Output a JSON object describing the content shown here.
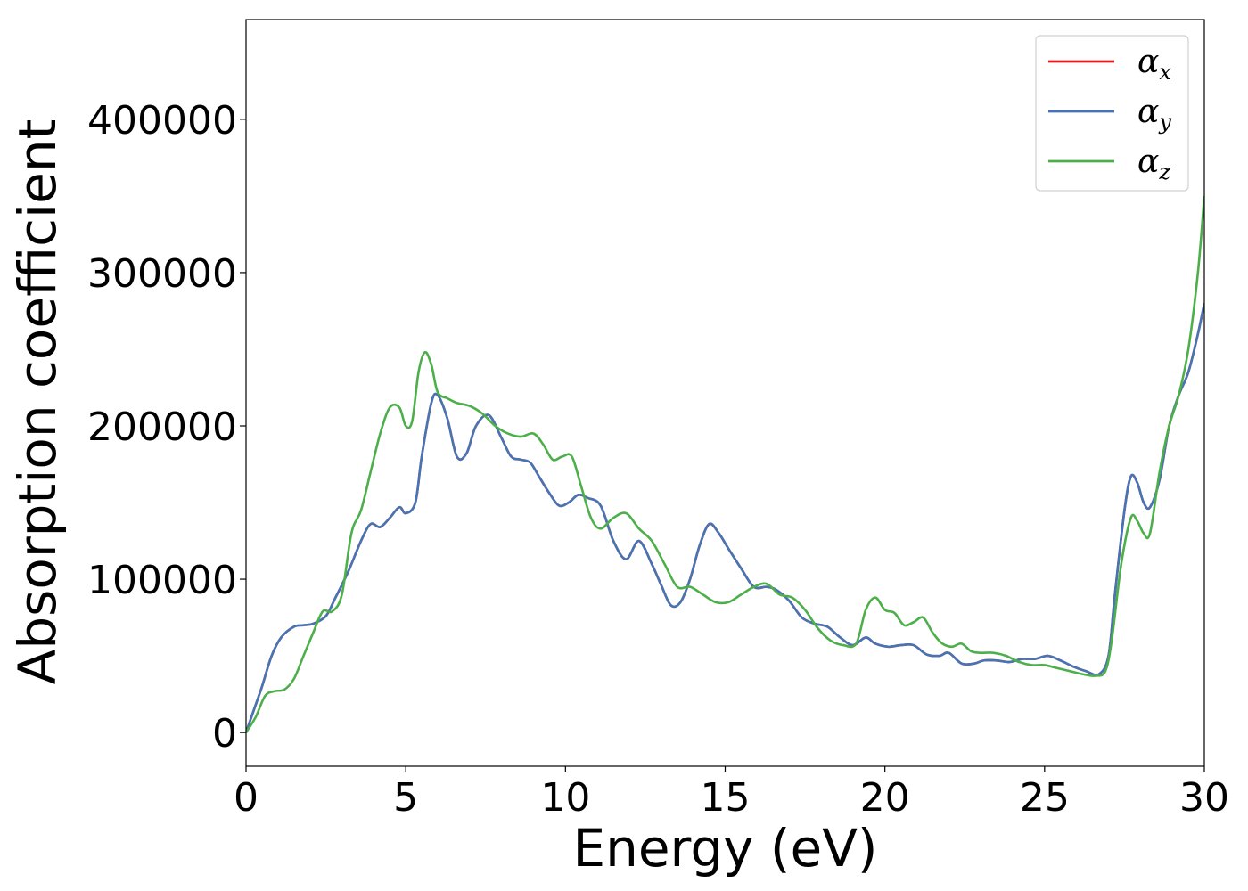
{
  "chart_data": {
    "type": "line",
    "title": "",
    "xlabel": "Energy (eV)",
    "ylabel": "Absorption coefficient",
    "xlim": [
      0,
      30
    ],
    "ylim": [
      -22000,
      465000
    ],
    "xticks": [
      0,
      5,
      10,
      15,
      20,
      25,
      30
    ],
    "yticks": [
      0,
      100000,
      200000,
      300000,
      400000
    ],
    "xtick_labels": [
      "0",
      "5",
      "10",
      "15",
      "20",
      "25",
      "30"
    ],
    "ytick_labels": [
      "0",
      "100000",
      "200000",
      "300000",
      "400000"
    ],
    "grid": false,
    "legend": "top-right",
    "series": [
      {
        "name": "α",
        "subscript": "x",
        "color": "#e41a1c",
        "x": [
          0,
          0.25,
          0.5,
          0.8,
          1.1,
          1.5,
          1.8,
          2.1,
          2.5,
          2.8,
          3.2,
          3.6,
          3.9,
          4.2,
          4.5,
          4.8,
          5.0,
          5.3,
          5.5,
          5.8,
          6.0,
          6.3,
          6.6,
          6.9,
          7.2,
          7.6,
          8.0,
          8.3,
          8.6,
          8.9,
          9.2,
          9.5,
          9.8,
          10.1,
          10.4,
          10.7,
          11.1,
          11.5,
          11.9,
          12.3,
          12.7,
          13.0,
          13.3,
          13.6,
          13.9,
          14.2,
          14.5,
          14.8,
          15.1,
          15.5,
          15.9,
          16.3,
          16.6,
          17.0,
          17.4,
          17.8,
          18.2,
          18.6,
          19.0,
          19.4,
          19.7,
          20.1,
          20.5,
          20.9,
          21.3,
          21.7,
          22.0,
          22.4,
          22.8,
          23.1,
          23.5,
          23.9,
          24.3,
          24.7,
          25.1,
          25.5,
          25.9,
          26.3,
          26.7,
          27.0,
          27.2,
          27.5,
          27.7,
          27.9,
          28.1,
          28.3,
          28.6,
          28.9,
          29.2,
          29.5,
          29.8,
          30.0
        ],
        "values": [
          0,
          15000,
          30000,
          50000,
          62000,
          69000,
          70000,
          71000,
          76000,
          88000,
          105000,
          125000,
          136000,
          134000,
          140000,
          147000,
          143000,
          150000,
          180000,
          215000,
          220000,
          205000,
          180000,
          182000,
          200000,
          207000,
          192000,
          180000,
          178000,
          176000,
          166000,
          156000,
          148000,
          150000,
          155000,
          153000,
          148000,
          125000,
          113000,
          125000,
          110000,
          96000,
          83000,
          85000,
          100000,
          122000,
          136000,
          130000,
          120000,
          107000,
          95000,
          95000,
          93000,
          86000,
          75000,
          71000,
          69000,
          62000,
          57000,
          62000,
          58000,
          56000,
          57000,
          57000,
          51000,
          50000,
          52000,
          45000,
          45000,
          47000,
          47000,
          46000,
          48000,
          48000,
          50000,
          47000,
          43000,
          40000,
          38000,
          50000,
          90000,
          145000,
          167000,
          163000,
          150000,
          147000,
          165000,
          200000,
          220000,
          235000,
          260000,
          280000
        ]
      },
      {
        "name": "α",
        "subscript": "y",
        "color": "#4575b4",
        "x": [
          0,
          0.25,
          0.5,
          0.8,
          1.1,
          1.5,
          1.8,
          2.1,
          2.5,
          2.8,
          3.2,
          3.6,
          3.9,
          4.2,
          4.5,
          4.8,
          5.0,
          5.3,
          5.5,
          5.8,
          6.0,
          6.3,
          6.6,
          6.9,
          7.2,
          7.6,
          8.0,
          8.3,
          8.6,
          8.9,
          9.2,
          9.5,
          9.8,
          10.1,
          10.4,
          10.7,
          11.1,
          11.5,
          11.9,
          12.3,
          12.7,
          13.0,
          13.3,
          13.6,
          13.9,
          14.2,
          14.5,
          14.8,
          15.1,
          15.5,
          15.9,
          16.3,
          16.6,
          17.0,
          17.4,
          17.8,
          18.2,
          18.6,
          19.0,
          19.4,
          19.7,
          20.1,
          20.5,
          20.9,
          21.3,
          21.7,
          22.0,
          22.4,
          22.8,
          23.1,
          23.5,
          23.9,
          24.3,
          24.7,
          25.1,
          25.5,
          25.9,
          26.3,
          26.7,
          27.0,
          27.2,
          27.5,
          27.7,
          27.9,
          28.1,
          28.3,
          28.6,
          28.9,
          29.2,
          29.5,
          29.8,
          30.0
        ],
        "values": [
          0,
          15000,
          30000,
          50000,
          62000,
          69000,
          70000,
          71000,
          76000,
          88000,
          105000,
          125000,
          136000,
          134000,
          140000,
          147000,
          143000,
          150000,
          180000,
          215000,
          220000,
          205000,
          180000,
          182000,
          200000,
          207000,
          192000,
          180000,
          178000,
          176000,
          166000,
          156000,
          148000,
          150000,
          155000,
          153000,
          148000,
          125000,
          113000,
          125000,
          110000,
          96000,
          83000,
          85000,
          100000,
          122000,
          136000,
          130000,
          120000,
          107000,
          95000,
          95000,
          93000,
          86000,
          75000,
          71000,
          69000,
          62000,
          57000,
          62000,
          58000,
          56000,
          57000,
          57000,
          51000,
          50000,
          52000,
          45000,
          45000,
          47000,
          47000,
          46000,
          48000,
          48000,
          50000,
          47000,
          43000,
          40000,
          38000,
          50000,
          90000,
          145000,
          167000,
          163000,
          150000,
          147000,
          165000,
          200000,
          220000,
          235000,
          260000,
          280000
        ]
      },
      {
        "name": "α",
        "subscript": "z",
        "color": "#4daf4a",
        "x": [
          0,
          0.3,
          0.6,
          0.9,
          1.2,
          1.5,
          1.8,
          2.1,
          2.4,
          2.7,
          3.0,
          3.3,
          3.6,
          3.9,
          4.2,
          4.5,
          4.8,
          5.0,
          5.2,
          5.4,
          5.6,
          5.8,
          6.0,
          6.3,
          6.6,
          7.0,
          7.4,
          7.8,
          8.2,
          8.6,
          9.0,
          9.3,
          9.6,
          9.9,
          10.2,
          10.5,
          10.8,
          11.1,
          11.5,
          11.9,
          12.3,
          12.7,
          13.1,
          13.5,
          13.9,
          14.3,
          14.7,
          15.1,
          15.5,
          15.9,
          16.3,
          16.7,
          17.1,
          17.5,
          17.9,
          18.3,
          18.7,
          19.1,
          19.4,
          19.7,
          20.0,
          20.3,
          20.6,
          20.9,
          21.2,
          21.5,
          21.8,
          22.1,
          22.4,
          22.7,
          23.0,
          23.4,
          23.8,
          24.2,
          24.6,
          25.0,
          25.4,
          25.8,
          26.2,
          26.6,
          26.9,
          27.1,
          27.4,
          27.7,
          27.9,
          28.1,
          28.3,
          28.6,
          28.9,
          29.2,
          29.5,
          29.8,
          30.0
        ],
        "values": [
          0,
          10000,
          24000,
          27000,
          28000,
          35000,
          50000,
          65000,
          79000,
          79000,
          90000,
          130000,
          145000,
          170000,
          195000,
          212000,
          212000,
          200000,
          203000,
          235000,
          248000,
          240000,
          222000,
          218000,
          215000,
          213000,
          208000,
          200000,
          195000,
          193000,
          195000,
          188000,
          178000,
          180000,
          180000,
          160000,
          140000,
          133000,
          140000,
          143000,
          133000,
          125000,
          110000,
          95000,
          95000,
          90000,
          85000,
          85000,
          90000,
          95000,
          97000,
          90000,
          88000,
          80000,
          68000,
          60000,
          57000,
          58000,
          80000,
          88000,
          80000,
          78000,
          70000,
          72000,
          75000,
          65000,
          58000,
          56000,
          58000,
          53000,
          52000,
          52000,
          50000,
          46000,
          44000,
          44000,
          42000,
          40000,
          38000,
          37000,
          40000,
          60000,
          110000,
          140000,
          138000,
          130000,
          130000,
          170000,
          200000,
          220000,
          250000,
          300000,
          350000
        ]
      }
    ]
  }
}
